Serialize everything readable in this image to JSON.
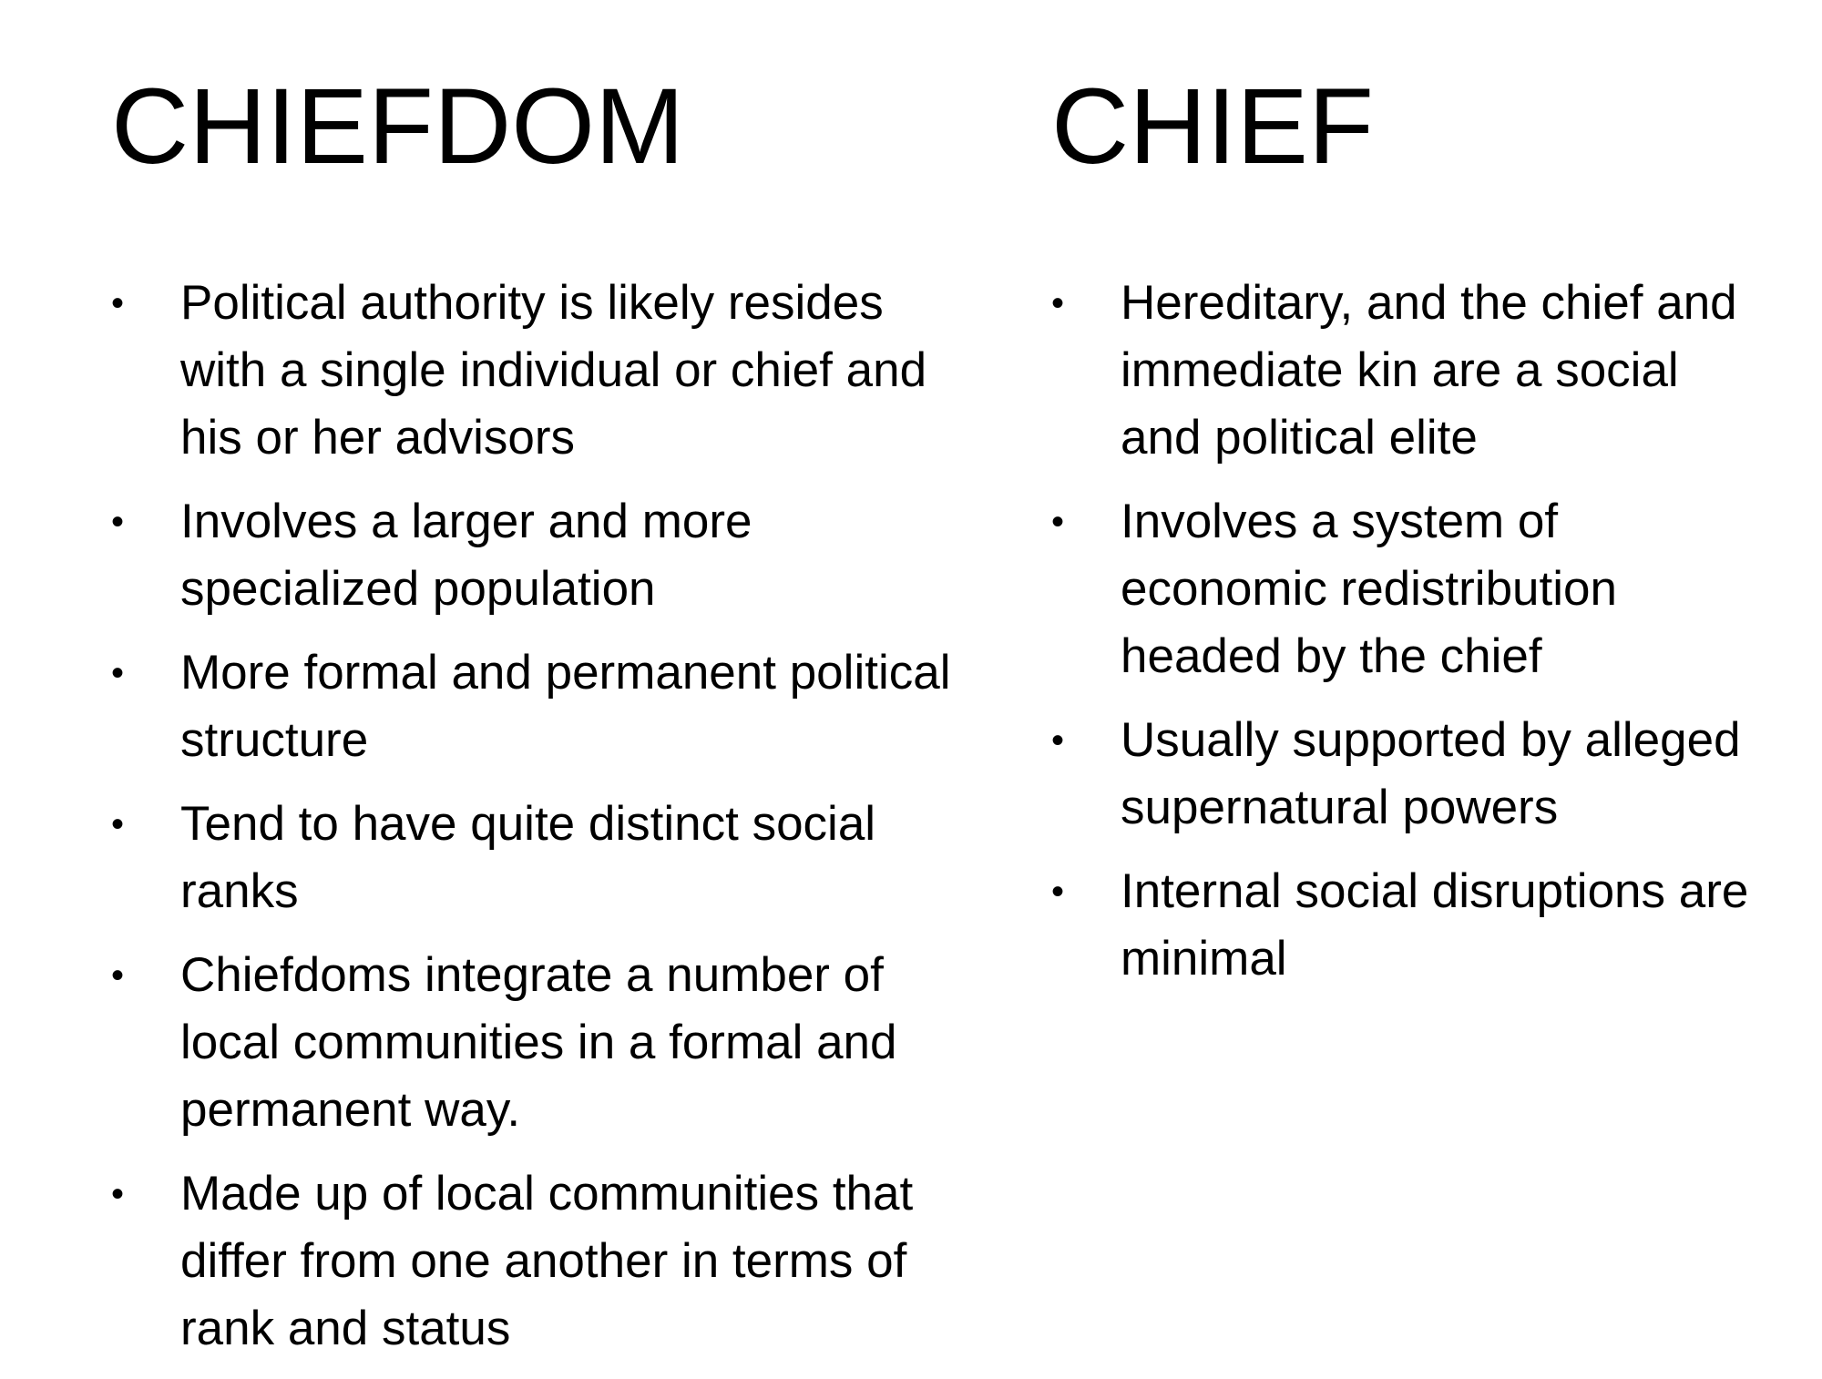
{
  "left": {
    "title": "CHIEFDOM",
    "bullet_glyph": "•",
    "items": [
      "Political authority is likely resides with a single individual or chief and his or her advisors",
      "Involves a larger and more specialized population",
      "More formal and permanent political structure",
      "Tend to have quite distinct social ranks",
      "Chiefdoms integrate a number of local communities in a formal and permanent way.",
      "Made up of local communities that differ from one another in terms of rank and status"
    ]
  },
  "right": {
    "title": "CHIEF",
    "bullet_glyph": "•",
    "items": [
      "Hereditary, and the chief and immediate kin are a social and political elite",
      "Involves a system of economic redistribution headed by the chief",
      "Usually supported by alleged supernatural powers",
      "Internal social disruptions are minimal"
    ]
  }
}
